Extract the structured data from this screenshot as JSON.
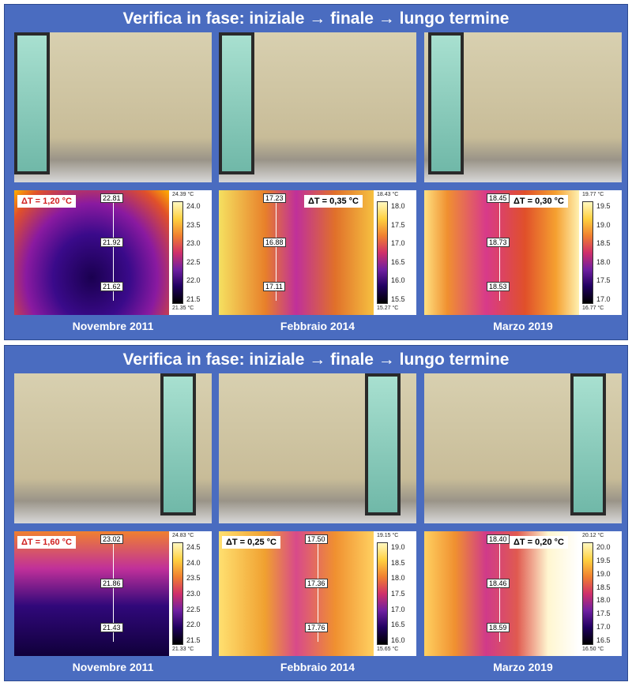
{
  "panels": [
    {
      "title": "Verifica in fase: iniziale → finale → lungo termine",
      "columns": [
        {
          "delta_t": "ΔT = 1,20 °C",
          "max_label": "24.39 °C",
          "min_label": "21.35 °C",
          "scale_ticks": [
            "24.0",
            "23.5",
            "23.0",
            "22.5",
            "22.0",
            "21.5"
          ],
          "spots": [
            "22.81",
            "21.92",
            "21.62"
          ],
          "caption": "Novembre 2011"
        },
        {
          "delta_t": "ΔT = 0,35 °C",
          "max_label": "18.43 °C",
          "min_label": "15.27 °C",
          "scale_ticks": [
            "18.0",
            "17.5",
            "17.0",
            "16.5",
            "16.0",
            "15.5"
          ],
          "spots": [
            "17.23",
            "16.88",
            "17.11"
          ],
          "caption": "Febbraio 2014"
        },
        {
          "delta_t": "ΔT = 0,30 °C",
          "max_label": "19.77 °C",
          "min_label": "16.77 °C",
          "scale_ticks": [
            "19.5",
            "19.0",
            "18.5",
            "18.0",
            "17.5",
            "17.0"
          ],
          "spots": [
            "18.45",
            "18.73",
            "18.53"
          ],
          "caption": "Marzo 2019"
        }
      ]
    },
    {
      "title": "Verifica in fase: iniziale → finale → lungo termine",
      "columns": [
        {
          "delta_t": "ΔT = 1,60 °C",
          "max_label": "24.83 °C",
          "min_label": "21.33 °C",
          "scale_ticks": [
            "24.5",
            "24.0",
            "23.5",
            "23.0",
            "22.5",
            "22.0",
            "21.5"
          ],
          "spots": [
            "23.02",
            "21.86",
            "21.43"
          ],
          "caption": "Novembre 2011"
        },
        {
          "delta_t": "ΔT = 0,25 °C",
          "max_label": "19.15 °C",
          "min_label": "15.65 °C",
          "scale_ticks": [
            "19.0",
            "18.5",
            "18.0",
            "17.5",
            "17.0",
            "16.5",
            "16.0"
          ],
          "spots": [
            "17.50",
            "17.36",
            "17.76"
          ],
          "caption": "Febbraio 2014"
        },
        {
          "delta_t": "ΔT = 0,20 °C",
          "max_label": "20.12 °C",
          "min_label": "16.50 °C",
          "scale_ticks": [
            "20.0",
            "19.5",
            "19.0",
            "18.5",
            "18.0",
            "17.5",
            "17.0",
            "16.5"
          ],
          "spots": [
            "18.40",
            "18.46",
            "18.59"
          ],
          "caption": "Marzo 2019"
        }
      ]
    }
  ]
}
